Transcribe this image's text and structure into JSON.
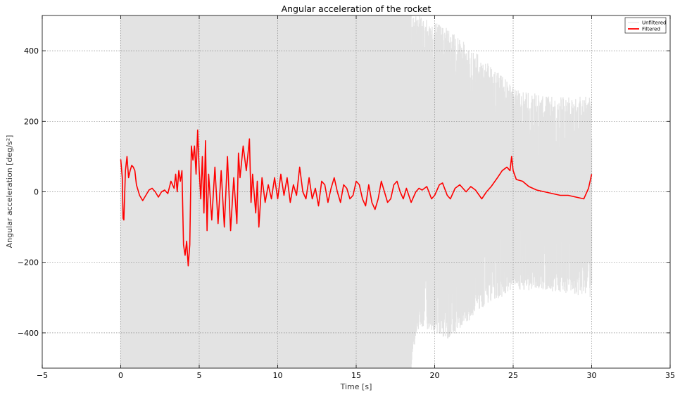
{
  "chart_data": {
    "type": "line",
    "title": "Angular acceleration of the rocket",
    "xlabel": "Time [s]",
    "ylabel": "Angular acceleration [deg/s²]",
    "xlim": [
      -5,
      35
    ],
    "ylim": [
      -500,
      500
    ],
    "xticks": [
      -5,
      0,
      5,
      10,
      15,
      20,
      25,
      30,
      35
    ],
    "xtick_labels": [
      "−5",
      "0",
      "5",
      "10",
      "15",
      "20",
      "25",
      "30",
      "35"
    ],
    "yticks": [
      -400,
      -200,
      0,
      200,
      400
    ],
    "ytick_labels": [
      "−400",
      "−200",
      "0",
      "200",
      "400"
    ],
    "grid": true,
    "legend_position": "top-right",
    "series": [
      {
        "name": "Unfiltered",
        "color": "#e3e3e3",
        "style": "noisy-band",
        "x_range": [
          0,
          30
        ],
        "band_envelope": [
          {
            "x": 0,
            "min": -500,
            "max": 500
          },
          {
            "x": 18.5,
            "min": -500,
            "max": 500
          },
          {
            "x": 19,
            "min": -380,
            "max": 500
          },
          {
            "x": 21,
            "min": -420,
            "max": 460
          },
          {
            "x": 23,
            "min": -330,
            "max": 380
          },
          {
            "x": 25,
            "min": -280,
            "max": 300
          },
          {
            "x": 27,
            "min": -280,
            "max": 270
          },
          {
            "x": 30,
            "min": -300,
            "max": 270
          }
        ]
      },
      {
        "name": "Filtered",
        "color": "#ff0000",
        "style": "line",
        "points": [
          [
            0,
            92
          ],
          [
            0.1,
            40
          ],
          [
            0.15,
            -75
          ],
          [
            0.2,
            -80
          ],
          [
            0.3,
            60
          ],
          [
            0.4,
            100
          ],
          [
            0.5,
            40
          ],
          [
            0.6,
            60
          ],
          [
            0.7,
            75
          ],
          [
            0.8,
            70
          ],
          [
            0.9,
            60
          ],
          [
            1.0,
            20
          ],
          [
            1.2,
            -10
          ],
          [
            1.4,
            -25
          ],
          [
            1.6,
            -10
          ],
          [
            1.8,
            5
          ],
          [
            2.0,
            10
          ],
          [
            2.2,
            0
          ],
          [
            2.4,
            -15
          ],
          [
            2.6,
            0
          ],
          [
            2.8,
            5
          ],
          [
            3.0,
            -5
          ],
          [
            3.2,
            30
          ],
          [
            3.4,
            10
          ],
          [
            3.5,
            50
          ],
          [
            3.6,
            0
          ],
          [
            3.7,
            60
          ],
          [
            3.8,
            30
          ],
          [
            3.9,
            60
          ],
          [
            4.0,
            -150
          ],
          [
            4.1,
            -180
          ],
          [
            4.2,
            -140
          ],
          [
            4.3,
            -210
          ],
          [
            4.4,
            -150
          ],
          [
            4.5,
            130
          ],
          [
            4.6,
            90
          ],
          [
            4.7,
            130
          ],
          [
            4.8,
            50
          ],
          [
            4.9,
            175
          ],
          [
            5.0,
            60
          ],
          [
            5.1,
            -20
          ],
          [
            5.2,
            100
          ],
          [
            5.3,
            -60
          ],
          [
            5.4,
            145
          ],
          [
            5.5,
            -110
          ],
          [
            5.6,
            50
          ],
          [
            5.8,
            -80
          ],
          [
            6.0,
            70
          ],
          [
            6.2,
            -90
          ],
          [
            6.4,
            60
          ],
          [
            6.6,
            -100
          ],
          [
            6.8,
            100
          ],
          [
            7.0,
            -110
          ],
          [
            7.2,
            40
          ],
          [
            7.4,
            -90
          ],
          [
            7.5,
            110
          ],
          [
            7.6,
            40
          ],
          [
            7.8,
            130
          ],
          [
            8.0,
            60
          ],
          [
            8.2,
            150
          ],
          [
            8.3,
            -30
          ],
          [
            8.4,
            50
          ],
          [
            8.6,
            -60
          ],
          [
            8.7,
            30
          ],
          [
            8.8,
            -100
          ],
          [
            9.0,
            40
          ],
          [
            9.2,
            -30
          ],
          [
            9.4,
            20
          ],
          [
            9.6,
            -20
          ],
          [
            9.8,
            40
          ],
          [
            10.0,
            -20
          ],
          [
            10.2,
            50
          ],
          [
            10.4,
            -10
          ],
          [
            10.6,
            40
          ],
          [
            10.8,
            -30
          ],
          [
            11.0,
            20
          ],
          [
            11.2,
            -10
          ],
          [
            11.4,
            70
          ],
          [
            11.6,
            0
          ],
          [
            11.8,
            -20
          ],
          [
            12.0,
            40
          ],
          [
            12.2,
            -20
          ],
          [
            12.4,
            10
          ],
          [
            12.6,
            -40
          ],
          [
            12.8,
            30
          ],
          [
            13.0,
            20
          ],
          [
            13.2,
            -30
          ],
          [
            13.4,
            10
          ],
          [
            13.6,
            40
          ],
          [
            13.8,
            0
          ],
          [
            14.0,
            -30
          ],
          [
            14.2,
            20
          ],
          [
            14.4,
            10
          ],
          [
            14.6,
            -20
          ],
          [
            14.8,
            -10
          ],
          [
            15.0,
            30
          ],
          [
            15.2,
            20
          ],
          [
            15.4,
            -20
          ],
          [
            15.6,
            -40
          ],
          [
            15.8,
            20
          ],
          [
            16.0,
            -30
          ],
          [
            16.2,
            -50
          ],
          [
            16.4,
            -20
          ],
          [
            16.6,
            30
          ],
          [
            16.8,
            0
          ],
          [
            17.0,
            -30
          ],
          [
            17.2,
            -20
          ],
          [
            17.4,
            20
          ],
          [
            17.6,
            30
          ],
          [
            17.8,
            0
          ],
          [
            18.0,
            -20
          ],
          [
            18.2,
            10
          ],
          [
            18.5,
            -30
          ],
          [
            18.8,
            0
          ],
          [
            19.0,
            10
          ],
          [
            19.2,
            5
          ],
          [
            19.5,
            15
          ],
          [
            19.8,
            -20
          ],
          [
            20.0,
            -10
          ],
          [
            20.3,
            20
          ],
          [
            20.5,
            25
          ],
          [
            20.8,
            -10
          ],
          [
            21.0,
            -20
          ],
          [
            21.3,
            10
          ],
          [
            21.6,
            20
          ],
          [
            22.0,
            0
          ],
          [
            22.3,
            15
          ],
          [
            22.6,
            5
          ],
          [
            23.0,
            -20
          ],
          [
            23.3,
            0
          ],
          [
            23.6,
            15
          ],
          [
            24.0,
            40
          ],
          [
            24.3,
            60
          ],
          [
            24.6,
            70
          ],
          [
            24.8,
            60
          ],
          [
            24.9,
            100
          ],
          [
            25.0,
            60
          ],
          [
            25.2,
            35
          ],
          [
            25.6,
            30
          ],
          [
            26.0,
            15
          ],
          [
            26.5,
            5
          ],
          [
            27.0,
            0
          ],
          [
            27.5,
            -5
          ],
          [
            28.0,
            -10
          ],
          [
            28.5,
            -10
          ],
          [
            29.0,
            -15
          ],
          [
            29.5,
            -20
          ],
          [
            29.8,
            10
          ],
          [
            30.0,
            50
          ]
        ]
      }
    ]
  }
}
